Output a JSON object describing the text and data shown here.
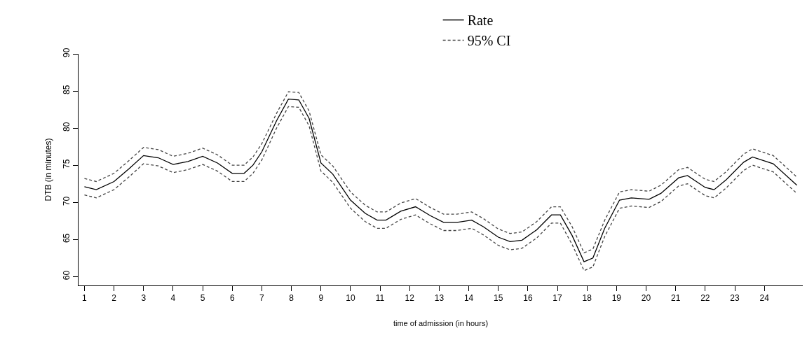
{
  "chart_data": {
    "type": "line",
    "xlabel": "time of admission (in hours)",
    "ylabel": "DTB (in minutes)",
    "x": [
      1,
      1.4,
      2,
      2.5,
      3,
      3.5,
      4,
      4.5,
      5,
      5.5,
      6,
      6.4,
      6.7,
      7,
      7.5,
      7.9,
      8.25,
      8.6,
      9,
      9.4,
      10,
      10.5,
      10.9,
      11.2,
      11.7,
      12.2,
      12.7,
      13.15,
      13.6,
      14.1,
      14.5,
      15,
      15.4,
      15.8,
      16.3,
      16.8,
      17.1,
      17.5,
      17.9,
      18.2,
      18.6,
      19.1,
      19.5,
      20.1,
      20.5,
      21.1,
      21.4,
      22,
      22.3,
      22.7,
      23.3,
      23.6,
      24.3,
      25.1
    ],
    "series": [
      {
        "name": "Rate",
        "color": "#000000",
        "line_style": "solid",
        "values": [
          72.1,
          71.7,
          72.8,
          74.5,
          76.3,
          76.0,
          75.1,
          75.5,
          76.2,
          75.3,
          73.9,
          73.9,
          75.0,
          76.8,
          81.0,
          83.9,
          83.8,
          81.3,
          75.3,
          73.8,
          70.3,
          68.5,
          67.6,
          67.6,
          68.8,
          69.4,
          68.2,
          67.3,
          67.3,
          67.6,
          66.7,
          65.3,
          64.7,
          64.9,
          66.3,
          68.3,
          68.3,
          65.5,
          62.0,
          62.5,
          66.5,
          70.3,
          70.6,
          70.4,
          71.2,
          73.3,
          73.6,
          72.0,
          71.7,
          73.0,
          75.4,
          76.1,
          75.2,
          72.3
        ]
      },
      {
        "name": "95% CI",
        "color": "#444444",
        "line_style": "dashed",
        "values": [
          73.2,
          72.8,
          73.9,
          75.6,
          77.4,
          77.1,
          76.2,
          76.6,
          77.3,
          76.4,
          75.0,
          75.0,
          76.1,
          77.9,
          82.0,
          84.9,
          84.8,
          82.3,
          76.4,
          74.9,
          71.4,
          69.6,
          68.7,
          68.7,
          69.9,
          70.5,
          69.3,
          68.4,
          68.4,
          68.7,
          67.8,
          66.4,
          65.8,
          66.0,
          67.4,
          69.4,
          69.4,
          66.7,
          63.2,
          63.7,
          67.6,
          71.4,
          71.7,
          71.5,
          72.3,
          74.4,
          74.7,
          73.1,
          72.8,
          74.1,
          76.5,
          77.2,
          76.3,
          73.4
        ]
      },
      {
        "color": "#444444",
        "line_style": "dashed",
        "values": [
          71.0,
          70.6,
          71.7,
          73.4,
          75.2,
          74.9,
          74.0,
          74.4,
          75.1,
          74.2,
          72.8,
          72.8,
          73.9,
          75.7,
          80.0,
          82.9,
          82.8,
          80.3,
          74.2,
          72.7,
          69.2,
          67.4,
          66.5,
          66.5,
          67.7,
          68.3,
          67.1,
          66.2,
          66.2,
          66.5,
          65.6,
          64.2,
          63.6,
          63.8,
          65.2,
          67.2,
          67.2,
          64.3,
          60.8,
          61.3,
          65.4,
          69.2,
          69.5,
          69.3,
          70.1,
          72.2,
          72.5,
          70.9,
          70.6,
          71.9,
          74.3,
          75.0,
          74.1,
          71.2
        ]
      }
    ],
    "xlim": [
      0.8,
      25.3
    ],
    "xticks": [
      1,
      2,
      3,
      4,
      5,
      6,
      7,
      8,
      9,
      10,
      11,
      12,
      13,
      14,
      15,
      16,
      17,
      18,
      19,
      20,
      21,
      22,
      23,
      24
    ],
    "ylim": [
      58.8,
      90
    ],
    "yticks": [
      60,
      65,
      70,
      75,
      80,
      85,
      90
    ],
    "legend": "top",
    "marker": "none"
  }
}
